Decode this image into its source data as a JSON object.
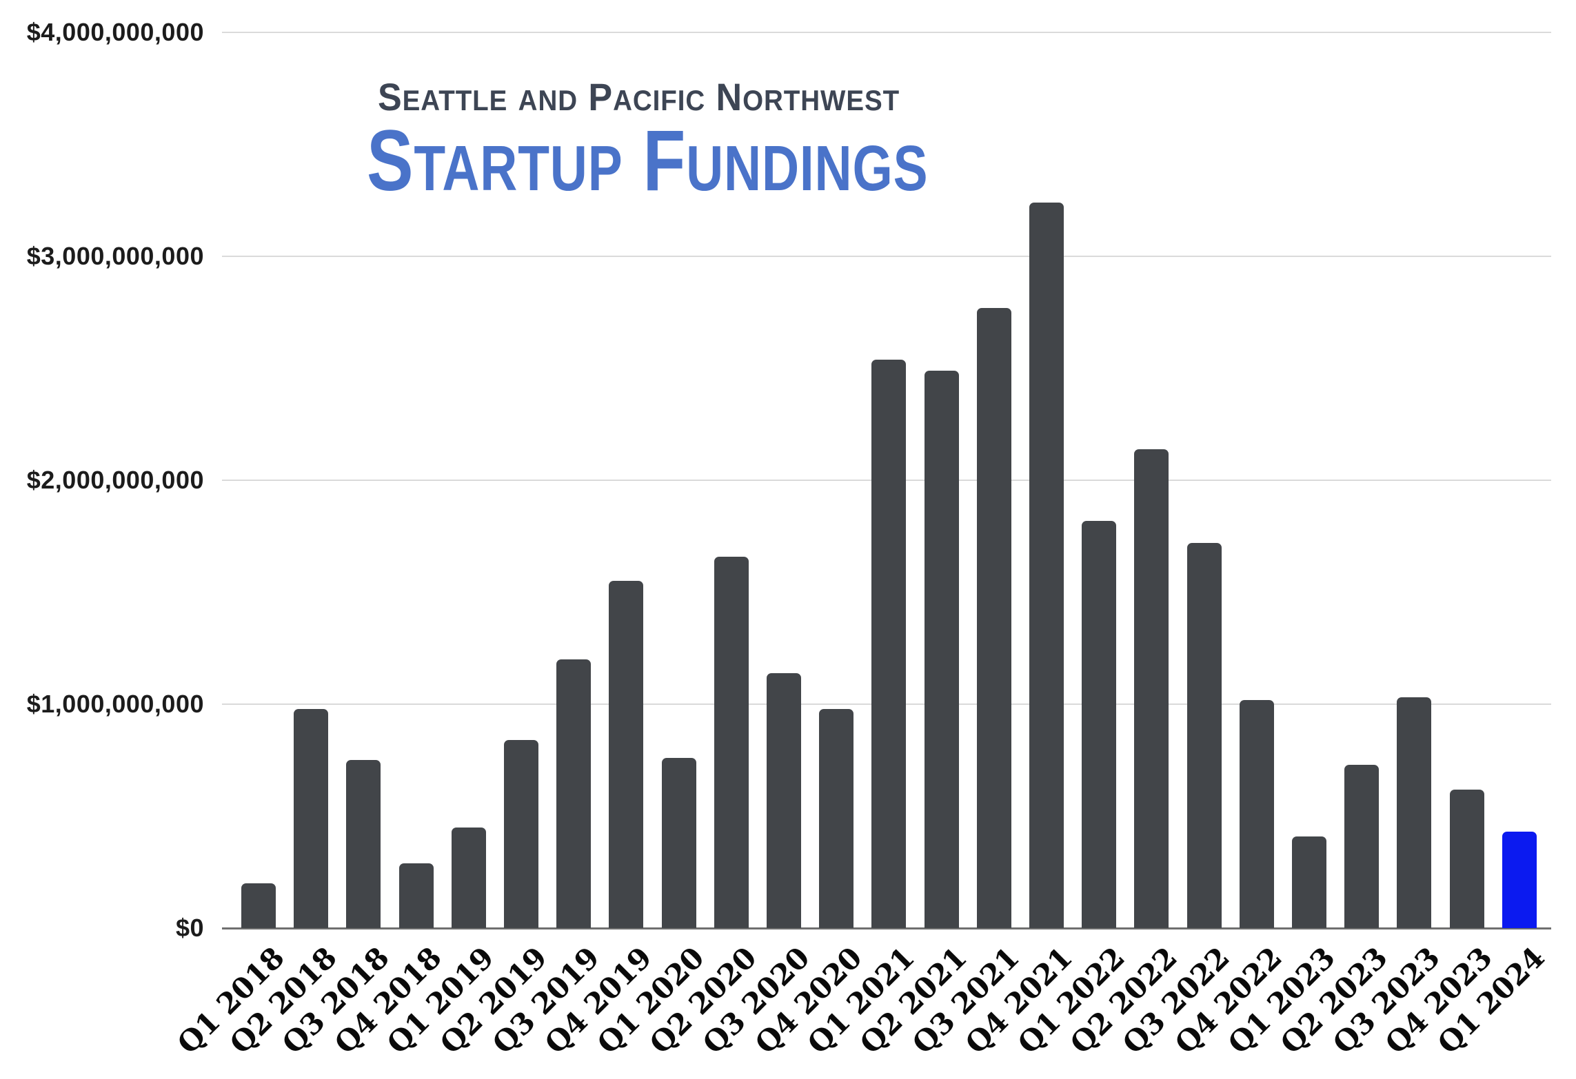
{
  "title": {
    "line1": "Seattle and Pacific Northwest",
    "line2": "Startup Fundings"
  },
  "colors": {
    "subtitle_text": "#3d4554",
    "title_text": "#4a73c9",
    "bar": "#424549",
    "highlight_bar": "#0b1af0",
    "gridline": "#dadada",
    "axis_line": "#6f6f6f",
    "y_label_text": "#1c1c1c",
    "x_label_text": "#0a0a0a"
  },
  "chart_data": {
    "type": "bar",
    "title": "Seattle and Pacific Northwest Startup Fundings",
    "xlabel": "",
    "ylabel": "",
    "grid": true,
    "legend": "none",
    "ylim": [
      0,
      4000000000
    ],
    "y_ticks": [
      {
        "label": "$0",
        "value": 0
      },
      {
        "label": "$1,000,000,000",
        "value": 1000000000
      },
      {
        "label": "$2,000,000,000",
        "value": 2000000000
      },
      {
        "label": "$3,000,000,000",
        "value": 3000000000
      },
      {
        "label": "$4,000,000,000",
        "value": 4000000000
      }
    ],
    "categories": [
      "Q1 2018",
      "Q2 2018",
      "Q3 2018",
      "Q4 2018",
      "Q1 2019",
      "Q2 2019",
      "Q3 2019",
      "Q4 2019",
      "Q1 2020",
      "Q2 2020",
      "Q3 2020",
      "Q4 2020",
      "Q1 2021",
      "Q2 2021",
      "Q3 2021",
      "Q4 2021",
      "Q1 2022",
      "Q2 2022",
      "Q3 2022",
      "Q4 2022",
      "Q1 2023",
      "Q2 2023",
      "Q3 2023",
      "Q4 2023",
      "Q1 2024"
    ],
    "values": [
      200000000,
      980000000,
      750000000,
      290000000,
      450000000,
      840000000,
      1200000000,
      1550000000,
      760000000,
      1660000000,
      1140000000,
      980000000,
      2540000000,
      2490000000,
      2770000000,
      3240000000,
      1820000000,
      2140000000,
      1720000000,
      1020000000,
      410000000,
      730000000,
      1030000000,
      620000000,
      430000000
    ],
    "highlight_index": 24
  }
}
